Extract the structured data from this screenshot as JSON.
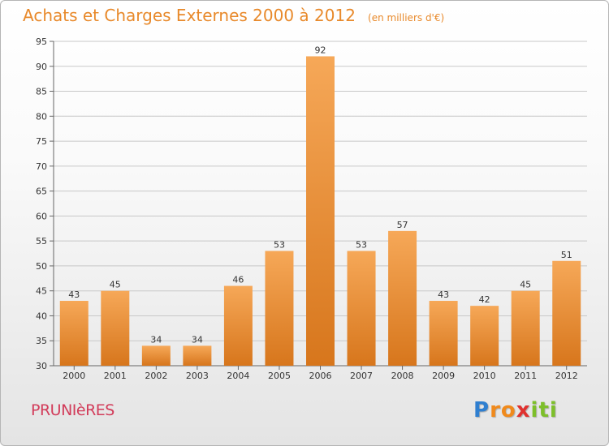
{
  "title": "Achats et Charges Externes 2000 à 2012",
  "subtitle": "(en milliers d'€)",
  "commune": "PRUNIèRES",
  "logo": {
    "letters": [
      "P",
      "r",
      "o",
      "x",
      "i",
      "t",
      "i"
    ],
    "colors": [
      "#2f7fd0",
      "#f08a1c",
      "#f08a1c",
      "#e0312f",
      "#7dbf2a",
      "#7dbf2a",
      "#7dbf2a"
    ]
  },
  "colors": {
    "accent": "#e8892a",
    "commune": "#d23c5a",
    "bar_light": "#f6a858",
    "bar_dark": "#d7761c",
    "grid": "#c8c8c8"
  },
  "chart_data": {
    "type": "bar",
    "categories": [
      "2000",
      "2001",
      "2002",
      "2003",
      "2004",
      "2005",
      "2006",
      "2007",
      "2008",
      "2009",
      "2010",
      "2011",
      "2012"
    ],
    "values": [
      43,
      45,
      34,
      34,
      46,
      53,
      92,
      53,
      57,
      43,
      42,
      45,
      51
    ],
    "data_labels": [
      "43",
      "45",
      "34",
      "34",
      "46",
      "53",
      "92",
      "53",
      "57",
      "43",
      "42",
      "45",
      "51"
    ],
    "yticks": [
      "30",
      "35",
      "40",
      "45",
      "50",
      "55",
      "60",
      "65",
      "70",
      "75",
      "80",
      "85",
      "90",
      "95"
    ],
    "ylim": [
      30,
      95
    ],
    "grid": true,
    "xlabel": "",
    "ylabel": ""
  }
}
